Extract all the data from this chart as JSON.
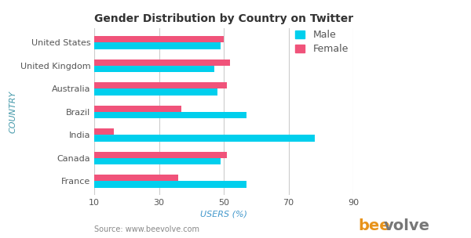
{
  "title": "Gender Distribution by Country on Twitter",
  "countries": [
    "United States",
    "United Kingdom",
    "Australia",
    "Brazil",
    "India",
    "Canada",
    "France"
  ],
  "male": [
    49,
    47,
    48,
    57,
    78,
    49,
    57
  ],
  "female": [
    50,
    52,
    51,
    37,
    16,
    51,
    36
  ],
  "male_color": "#00CFED",
  "female_color": "#F0537A",
  "xlabel": "USERS (%)",
  "ylabel": "COUNTRY",
  "xlim": [
    10,
    90
  ],
  "xticks": [
    10,
    30,
    50,
    70,
    90
  ],
  "source_text": "Source: www.beevolve.com",
  "watermark_bee": "bee",
  "watermark_volve": "volve",
  "watermark_bee_color": "#E8931A",
  "watermark_volve_color": "#777777",
  "background_color": "#ffffff",
  "grid_color": "#cccccc",
  "ylabel_color": "#4499AA",
  "xlabel_color": "#4499CC",
  "source_color": "#888888",
  "title_fontsize": 10,
  "axis_label_fontsize": 8,
  "tick_fontsize": 8,
  "legend_fontsize": 9,
  "bar_height": 0.28
}
